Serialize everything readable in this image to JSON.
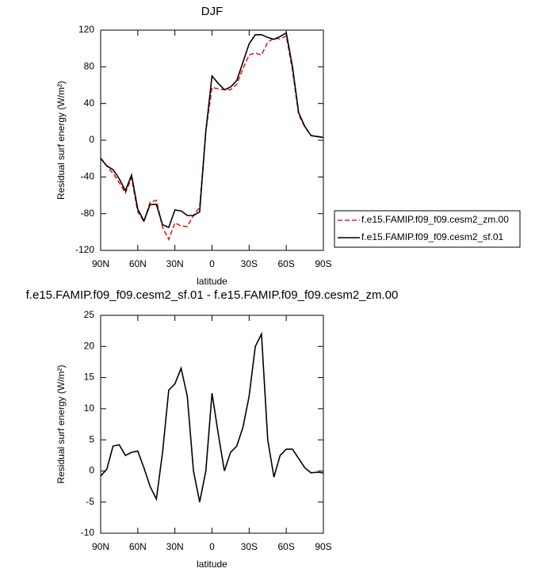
{
  "chart_data": [
    {
      "type": "line",
      "title": "DJF",
      "ylabel": "Residual surf energy (W/m²)",
      "xlabel": "latitude",
      "x": [
        90,
        85,
        80,
        75,
        70,
        65,
        60,
        55,
        50,
        45,
        40,
        35,
        30,
        25,
        20,
        15,
        10,
        5,
        0,
        -5,
        -10,
        -15,
        -20,
        -25,
        -30,
        -35,
        -40,
        -45,
        -50,
        -55,
        -60,
        -65,
        -70,
        -75,
        -80,
        -85,
        -90
      ],
      "series": [
        {
          "name": "f.e15.FAMIP.f09_f09.cesm2_zm.00",
          "color": "#e0201b",
          "dash": true,
          "values": [
            -19.2,
            -28.3,
            -36,
            -46.2,
            -57.5,
            -41,
            -78.2,
            -88.5,
            -67.5,
            -65.5,
            -95,
            -108,
            -90,
            -93.5,
            -94,
            -82,
            -73,
            10,
            57.5,
            56,
            55,
            55,
            61,
            78,
            93,
            95,
            93,
            107,
            111,
            110.5,
            113.5,
            76.5,
            28,
            14.5,
            5.3,
            4.2,
            3.3
          ]
        },
        {
          "name": "f.e15.FAMIP.f09_f09.cesm2_sf.01",
          "color": "#000000",
          "dash": false,
          "values": [
            -20,
            -28,
            -32,
            -42,
            -55,
            -38,
            -75,
            -88,
            -70,
            -70,
            -92,
            -95,
            -76,
            -77,
            -82,
            -82,
            -78,
            10,
            70,
            62,
            55,
            58,
            65,
            85,
            105,
            115,
            115,
            112,
            110,
            113,
            117,
            80,
            30,
            15,
            5,
            4,
            3
          ]
        }
      ],
      "xlim": [
        90,
        -90
      ],
      "xticks": [
        {
          "value": 90,
          "label": "90N"
        },
        {
          "value": 60,
          "label": "60N"
        },
        {
          "value": 30,
          "label": "30N"
        },
        0,
        {
          "value": -30,
          "label": "30S"
        },
        {
          "value": -60,
          "label": "60S"
        },
        {
          "value": -90,
          "label": "90S"
        }
      ],
      "ylim": [
        -120,
        120
      ],
      "yticks": [
        -120,
        -80,
        -40,
        0,
        40,
        80,
        120
      ],
      "legend": "right"
    },
    {
      "type": "line",
      "title": "f.e15.FAMIP.f09_f09.cesm2_sf.01 - f.e15.FAMIP.f09_f09.cesm2_zm.00",
      "ylabel": "Residual surf energy (W/m²)",
      "xlabel": "latitude",
      "x": [
        90,
        85,
        80,
        75,
        70,
        65,
        60,
        55,
        50,
        45,
        40,
        35,
        30,
        25,
        20,
        15,
        10,
        5,
        0,
        -5,
        -10,
        -15,
        -20,
        -25,
        -30,
        -35,
        -40,
        -45,
        -50,
        -55,
        -60,
        -65,
        -70,
        -75,
        -80,
        -85,
        -90
      ],
      "values": [
        -0.8,
        0.3,
        4,
        4.2,
        2.5,
        3,
        3.2,
        0.5,
        -2.5,
        -4.5,
        3,
        13,
        14,
        16.5,
        12,
        0,
        -5,
        0,
        12.5,
        6,
        0,
        3,
        4,
        7,
        12,
        20,
        22,
        5,
        -1,
        2.5,
        3.5,
        3.5,
        2,
        0.5,
        -0.3,
        -0.2,
        -0.3
      ],
      "color": "#000000",
      "xlim": [
        90,
        -90
      ],
      "xticks": [
        {
          "value": 90,
          "label": "90N"
        },
        {
          "value": 60,
          "label": "60N"
        },
        {
          "value": 30,
          "label": "30N"
        },
        0,
        {
          "value": -30,
          "label": "30S"
        },
        {
          "value": -60,
          "label": "60S"
        },
        {
          "value": -90,
          "label": "90S"
        }
      ],
      "ylim": [
        -10,
        25
      ],
      "yticks": [
        -10,
        -5,
        0,
        5,
        10,
        15,
        20,
        25
      ]
    }
  ]
}
